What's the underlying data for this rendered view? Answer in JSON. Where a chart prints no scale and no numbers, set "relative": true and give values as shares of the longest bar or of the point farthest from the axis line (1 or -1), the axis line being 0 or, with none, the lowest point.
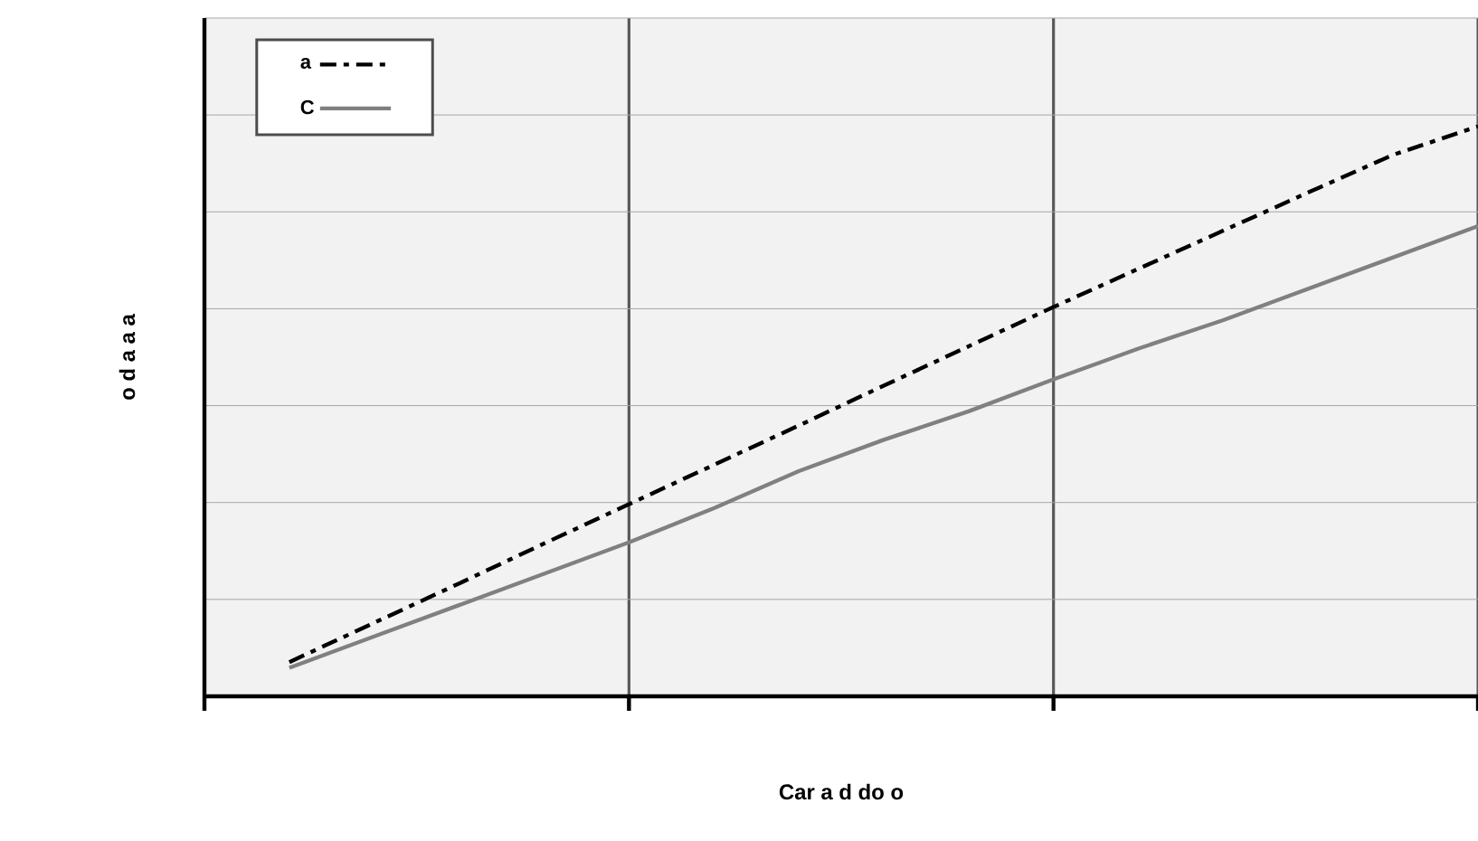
{
  "chart_data": {
    "type": "line",
    "relative": true,
    "xlabel": "Car a d do o",
    "ylabel": "o d a a a",
    "categories": [
      null,
      null,
      null,
      null,
      null,
      null,
      null,
      null,
      null,
      null,
      null,
      null,
      null,
      null,
      null,
      null
    ],
    "grid": true,
    "legend": "top left",
    "marker": "none",
    "series": [
      {
        "name": "a",
        "color": "#000000",
        "line_style": "dashdot",
        "values": [
          null,
          0.06,
          0.129,
          0.198,
          0.268,
          0.337,
          0.406,
          0.475,
          0.545,
          0.614,
          0.683,
          0.75,
          0.817,
          0.884,
          0.95,
          1.0
        ]
      },
      {
        "name": "C",
        "color": "#808080",
        "line_style": "solid",
        "values": [
          null,
          0.05,
          0.105,
          0.16,
          0.215,
          0.27,
          0.33,
          0.395,
          0.45,
          0.5,
          0.556,
          0.61,
          0.66,
          0.715,
          0.77,
          0.825
        ]
      }
    ]
  }
}
